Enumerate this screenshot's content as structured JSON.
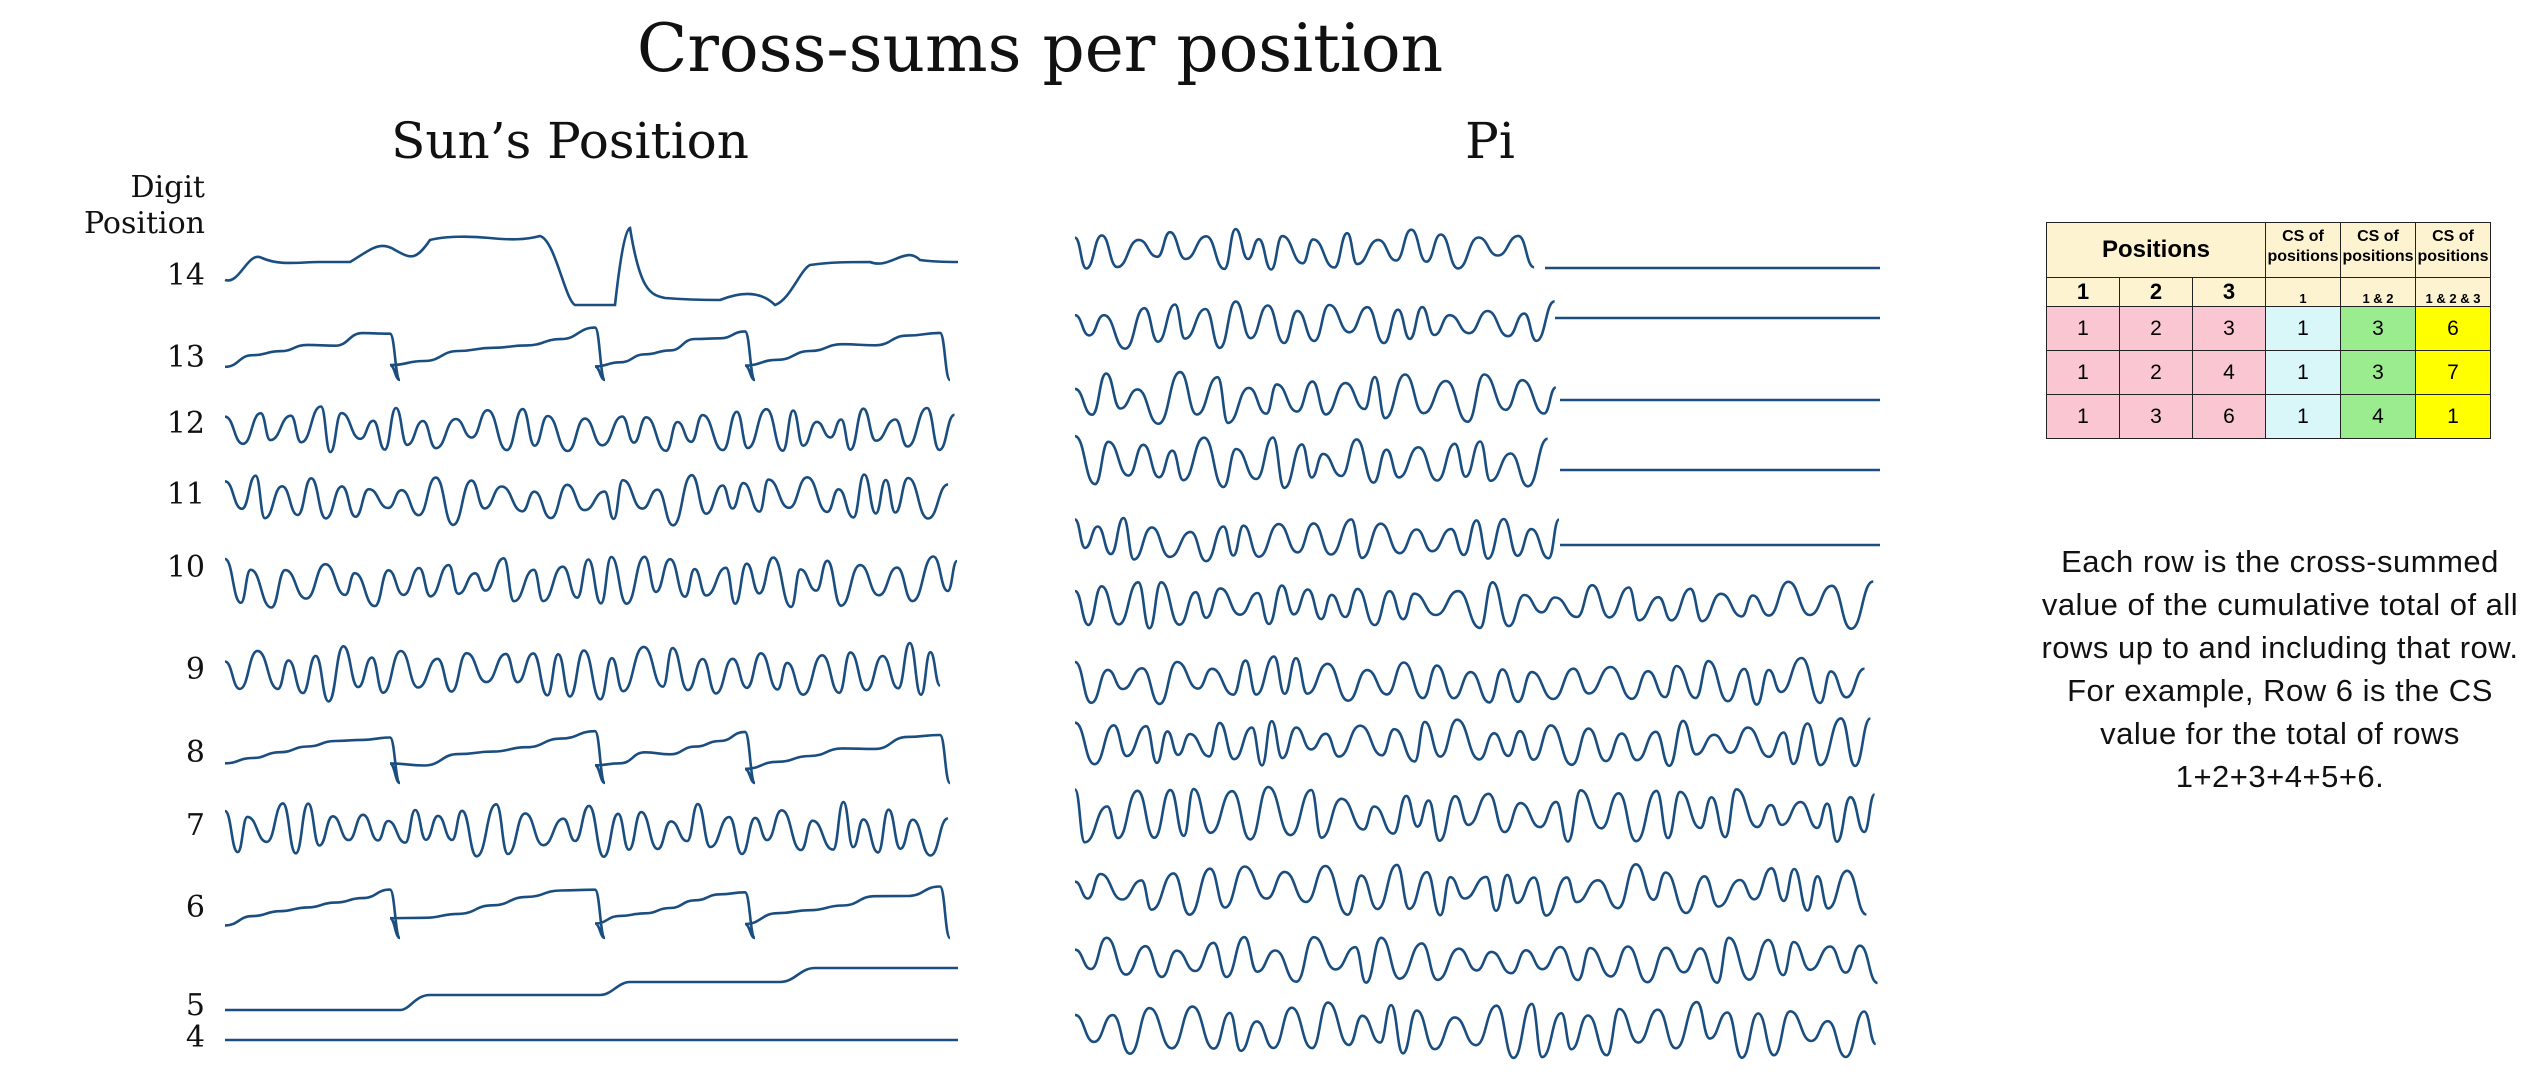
{
  "title": "Cross-sums per position",
  "panels": {
    "sun_title": "Sun’s Position",
    "pi_title": "Pi"
  },
  "axis_label": "Digit Position",
  "row_labels": [
    "14",
    "13",
    "12",
    "11",
    "10",
    "9",
    "8",
    "7",
    "6",
    "5",
    "4"
  ],
  "table": {
    "positions_header": "Positions",
    "col_headers": [
      "1",
      "2",
      "3"
    ],
    "cs_header": "CS of positions",
    "cs_subs": [
      "1",
      "1 & 2",
      "1 & 2 & 3"
    ],
    "rows": [
      {
        "p1": "1",
        "p2": "2",
        "p3": "3",
        "cs1": "1",
        "cs2": "3",
        "cs3": "6"
      },
      {
        "p1": "1",
        "p2": "2",
        "p3": "4",
        "cs1": "1",
        "cs2": "3",
        "cs3": "7"
      },
      {
        "p1": "1",
        "p2": "3",
        "p3": "6",
        "cs1": "1",
        "cs2": "4",
        "cs3": "1"
      }
    ]
  },
  "note": "Each row is the cross-summed value of the cumulative total of all rows up to and including that row. For example, Row 6 is the CS value for the total of rows 1+2+3+4+5+6.",
  "colors": {
    "line": "#1a4e80",
    "positions_fill": "#f9c6d2",
    "cs1_fill": "#d9f7f9",
    "cs12_fill": "#9bec8e",
    "cs123_fill": "#ffff00",
    "header_fill": "#fdf3d0"
  },
  "chart_data": [
    {
      "type": "line",
      "title": "Sun’s Position",
      "ylabel": "Digit Position",
      "series": [
        {
          "name": "14",
          "pattern": "sparse-high"
        },
        {
          "name": "13",
          "pattern": "sawtooth"
        },
        {
          "name": "12",
          "pattern": "oscillating"
        },
        {
          "name": "11",
          "pattern": "oscillating"
        },
        {
          "name": "10",
          "pattern": "oscillating"
        },
        {
          "name": "9",
          "pattern": "oscillating"
        },
        {
          "name": "8",
          "pattern": "step-oscillating"
        },
        {
          "name": "7",
          "pattern": "oscillating"
        },
        {
          "name": "6",
          "pattern": "sawtooth"
        },
        {
          "name": "5",
          "pattern": "steps",
          "values": [
            0,
            1,
            2,
            3
          ]
        },
        {
          "name": "4",
          "pattern": "flat",
          "values": [
            0
          ]
        }
      ]
    },
    {
      "type": "line",
      "title": "Pi",
      "series_count": 12,
      "note_shape": "top rows oscillate then flatten; lower rows oscillate throughout"
    }
  ]
}
